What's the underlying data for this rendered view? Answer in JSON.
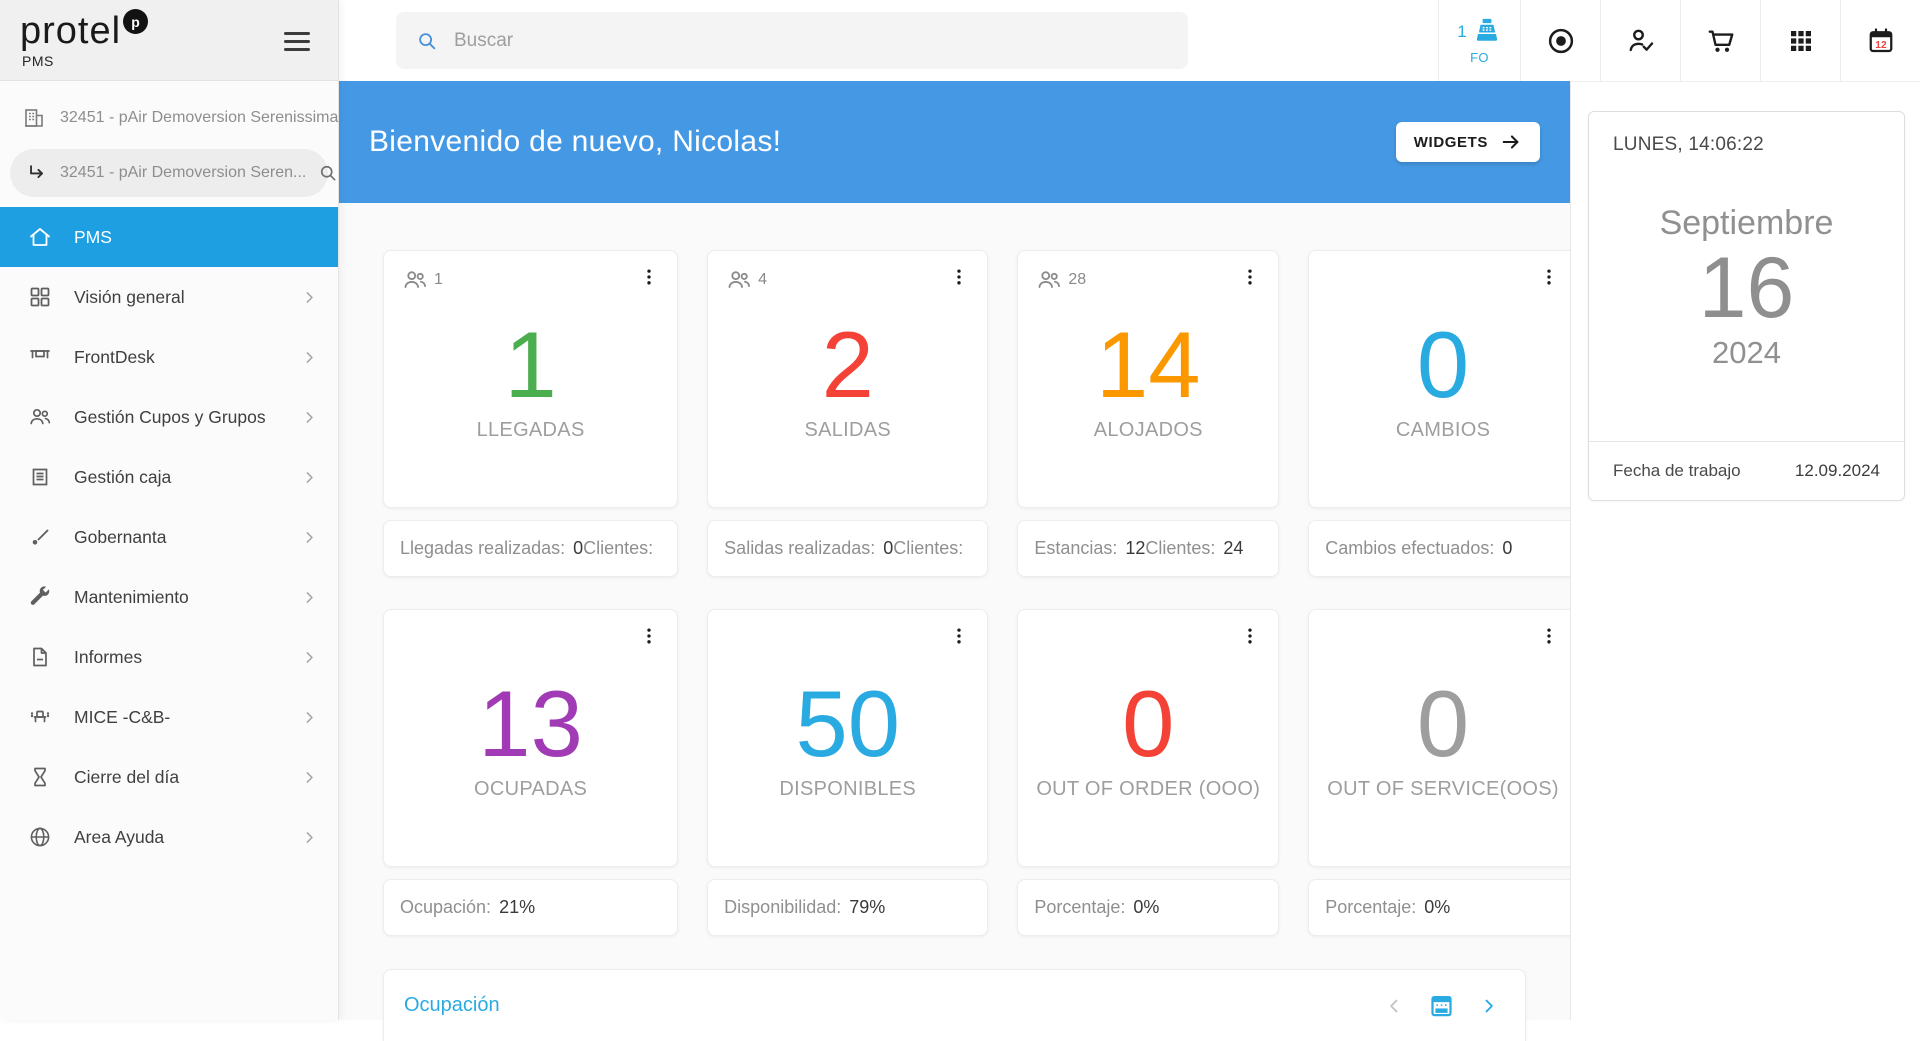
{
  "colors": {
    "accent_blue": "#29ABE2",
    "banner_blue": "#4599E4",
    "active_nav_blue": "#1E9FE2",
    "calendar_day_red": "#E8483F"
  },
  "brand": {
    "name": "protel",
    "badge": "p",
    "product": "PMS"
  },
  "sidebar": {
    "property": "32451 - pAir Demoversion Serenissima",
    "property_sub": "32451 - pAir Demoversion Seren...",
    "items": [
      {
        "label": "PMS",
        "icon": "home",
        "active": true,
        "chevron": false
      },
      {
        "label": "Visión general",
        "icon": "dashboard",
        "active": false,
        "chevron": true
      },
      {
        "label": "FrontDesk",
        "icon": "desk",
        "active": false,
        "chevron": true
      },
      {
        "label": "Gestión Cupos y Grupos",
        "icon": "groups",
        "active": false,
        "chevron": true
      },
      {
        "label": "Gestión caja",
        "icon": "receipt",
        "active": false,
        "chevron": true
      },
      {
        "label": "Gobernanta",
        "icon": "brush",
        "active": false,
        "chevron": true
      },
      {
        "label": "Mantenimiento",
        "icon": "wrench",
        "active": false,
        "chevron": true
      },
      {
        "label": "Informes",
        "icon": "document",
        "active": false,
        "chevron": true
      },
      {
        "label": "MICE -C&B-",
        "icon": "seat",
        "active": false,
        "chevron": true
      },
      {
        "label": "Cierre del día",
        "icon": "hourglass",
        "active": false,
        "chevron": true
      },
      {
        "label": "Area Ayuda",
        "icon": "globe",
        "active": false,
        "chevron": true
      }
    ]
  },
  "topbar": {
    "search_placeholder": "Buscar",
    "cashier_count": "1",
    "cashier_label": "FO",
    "calendar_day": "12",
    "icons": [
      "record",
      "person-check",
      "cart",
      "apps-grid",
      "calendar"
    ]
  },
  "banner": {
    "greeting": "Bienvenido de nuevo, Nicolas!",
    "widgets_label": "WIDGETS"
  },
  "clock_card": {
    "weekday_time": "LUNES, 14:06:22",
    "month": "Septiembre",
    "day": "16",
    "year": "2024",
    "workdate_label": "Fecha de trabajo",
    "workdate_value": "12.09.2024"
  },
  "widgets": [
    {
      "badge": "1",
      "value": "1",
      "color": "#4BAE4F",
      "label": "LLEGADAS",
      "footer": [
        {
          "text": "Llegadas realizadas:",
          "kind": "label"
        },
        {
          "text": "0",
          "kind": "value"
        },
        {
          "text": "Clientes:",
          "kind": "label"
        }
      ]
    },
    {
      "badge": "4",
      "value": "2",
      "color": "#F44336",
      "label": "SALIDAS",
      "footer": [
        {
          "text": "Salidas realizadas:",
          "kind": "label"
        },
        {
          "text": "0",
          "kind": "value"
        },
        {
          "text": "Clientes:",
          "kind": "label"
        }
      ]
    },
    {
      "badge": "28",
      "value": "14",
      "color": "#FB9800",
      "label": "ALOJADOS",
      "footer": [
        {
          "text": "Estancias:",
          "kind": "label"
        },
        {
          "text": "12",
          "kind": "value"
        },
        {
          "text": "Clientes:",
          "kind": "label"
        },
        {
          "text": "24",
          "kind": "value"
        }
      ]
    },
    {
      "badge": null,
      "value": "0",
      "color": "#29ABE2",
      "label": "CAMBIOS",
      "footer": [
        {
          "text": "Cambios efectuados:",
          "kind": "label"
        },
        {
          "text": "0",
          "kind": "value"
        }
      ]
    },
    {
      "badge": null,
      "value": "13",
      "color": "#A03BB5",
      "label": "OCUPADAS",
      "footer": [
        {
          "text": "Ocupación:",
          "kind": "label"
        },
        {
          "text": "21%",
          "kind": "value"
        }
      ]
    },
    {
      "badge": null,
      "value": "50",
      "color": "#29ABE2",
      "label": "DISPONIBLES",
      "footer": [
        {
          "text": "Disponibilidad:",
          "kind": "label"
        },
        {
          "text": "79%",
          "kind": "value"
        }
      ]
    },
    {
      "badge": null,
      "value": "0",
      "color": "#F44336",
      "label": "OUT OF ORDER (OOO)",
      "footer": [
        {
          "text": "Porcentaje:",
          "kind": "label"
        },
        {
          "text": "0%",
          "kind": "value"
        }
      ]
    },
    {
      "badge": null,
      "value": "0",
      "color": "#9E9E9E",
      "label": "OUT OF SERVICE(OOS)",
      "footer": [
        {
          "text": "Porcentaje:",
          "kind": "label"
        },
        {
          "text": "0%",
          "kind": "value"
        }
      ]
    }
  ],
  "occupancy": {
    "title": "Ocupación"
  }
}
